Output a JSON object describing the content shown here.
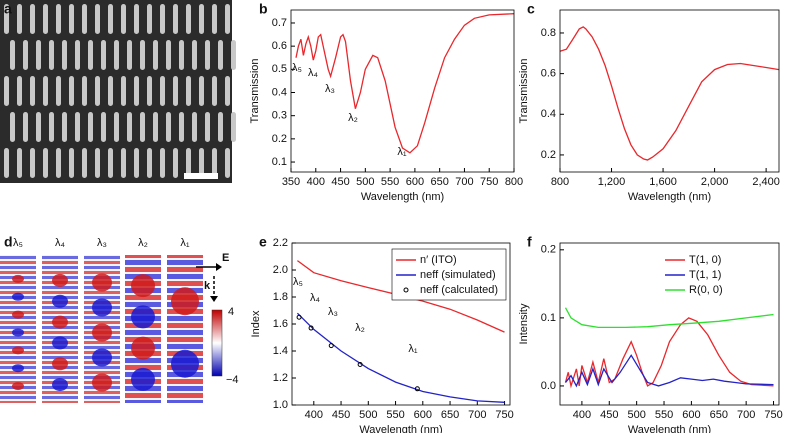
{
  "panel_labels": [
    "a",
    "b",
    "c",
    "d",
    "e",
    "f"
  ],
  "field_map": {
    "labels": [
      "λ₅",
      "λ₄",
      "λ₃",
      "λ₂",
      "λ₁"
    ],
    "colorbar_ticks": [
      "4",
      "−4"
    ],
    "field_label": "E",
    "wavevector_label": "k"
  },
  "chart_data": [
    {
      "type": "line",
      "xlabel": "Wavelength (nm)",
      "ylabel": "Transmission",
      "xlim": [
        350,
        800
      ],
      "ylim": [
        0.057,
        0.756
      ],
      "xticks": [
        350,
        400,
        450,
        500,
        550,
        600,
        650,
        700,
        750,
        800
      ],
      "yticks": [
        0.1,
        0.2,
        0.3,
        0.4,
        0.5,
        0.6,
        0.7
      ],
      "annotations": [
        "λ₅",
        "λ₄",
        "λ₃",
        "λ₂",
        "λ₁"
      ],
      "series": [
        {
          "color": "#e8282c",
          "x": [
            360,
            365,
            370,
            375,
            380,
            385,
            390,
            395,
            400,
            405,
            410,
            415,
            425,
            430,
            440,
            450,
            455,
            460,
            470,
            480,
            490,
            500,
            515,
            525,
            540,
            560,
            575,
            590,
            605,
            620,
            640,
            660,
            680,
            700,
            720,
            750,
            800
          ],
          "values": [
            0.55,
            0.6,
            0.63,
            0.56,
            0.61,
            0.64,
            0.6,
            0.54,
            0.58,
            0.64,
            0.65,
            0.6,
            0.5,
            0.47,
            0.55,
            0.64,
            0.65,
            0.62,
            0.45,
            0.33,
            0.4,
            0.5,
            0.56,
            0.55,
            0.45,
            0.25,
            0.16,
            0.14,
            0.17,
            0.27,
            0.42,
            0.55,
            0.63,
            0.69,
            0.72,
            0.735,
            0.74
          ]
        }
      ]
    },
    {
      "type": "line",
      "xlabel": "Wavelength (nm)",
      "ylabel": "Transmission",
      "xlim": [
        800,
        2500
      ],
      "ylim": [
        0.116,
        0.913
      ],
      "xticks": [
        800,
        {
          "value": 1200,
          "label": "1,200"
        },
        {
          "value": 1600,
          "label": "1,600"
        },
        {
          "value": 2000,
          "label": "2,000"
        },
        {
          "value": 2400,
          "label": "2,400"
        }
      ],
      "yticks": [
        0.2,
        0.4,
        0.6,
        0.8
      ],
      "series": [
        {
          "color": "#e8282c",
          "x": [
            800,
            850,
            900,
            950,
            980,
            1000,
            1050,
            1100,
            1150,
            1200,
            1250,
            1300,
            1350,
            1400,
            1450,
            1480,
            1520,
            1600,
            1700,
            1800,
            1900,
            2000,
            2100,
            2200,
            2300,
            2400,
            2500
          ],
          "values": [
            0.71,
            0.72,
            0.77,
            0.82,
            0.83,
            0.82,
            0.78,
            0.72,
            0.64,
            0.54,
            0.43,
            0.33,
            0.25,
            0.2,
            0.18,
            0.175,
            0.19,
            0.23,
            0.32,
            0.44,
            0.56,
            0.62,
            0.645,
            0.65,
            0.64,
            0.63,
            0.62
          ]
        }
      ]
    },
    {
      "type": "line",
      "xlabel": "Wavelength (nm)",
      "ylabel": "Index",
      "xlim": [
        360,
        760
      ],
      "ylim": [
        1,
        2.2
      ],
      "xticks": [
        400,
        450,
        500,
        550,
        600,
        650,
        700,
        750
      ],
      "yticks": [
        {
          "value": 1,
          "label": "1.0"
        },
        1.2,
        1.4,
        1.6,
        1.8,
        {
          "value": 2,
          "label": "2.0"
        },
        2.2
      ],
      "annotations": [
        "λ₅",
        "λ₄",
        "λ₃",
        "λ₂",
        "λ₁"
      ],
      "legend": "upper right",
      "legend_frame": true,
      "series": [
        {
          "name": "n′ (ITO)",
          "color": "#e8282c",
          "x": [
            370,
            400,
            450,
            500,
            550,
            600,
            650,
            700,
            750
          ],
          "values": [
            2.07,
            1.98,
            1.92,
            1.87,
            1.82,
            1.77,
            1.71,
            1.63,
            1.54
          ]
        },
        {
          "name": "neff (simulated)",
          "color": "#2323c8",
          "x": [
            370,
            400,
            450,
            500,
            550,
            600,
            650,
            700,
            750
          ],
          "values": [
            1.68,
            1.56,
            1.4,
            1.27,
            1.17,
            1.1,
            1.06,
            1.03,
            1.02
          ]
        },
        {
          "name": "neff (calculated)",
          "type": "scatter",
          "color": "#000000",
          "x": [
            373,
            395,
            432,
            485,
            590
          ],
          "values": [
            1.65,
            1.57,
            1.44,
            1.3,
            1.12
          ]
        }
      ]
    },
    {
      "type": "line",
      "xlabel": "Wavelength (nm)",
      "ylabel": "Intensity",
      "xlim": [
        360,
        760
      ],
      "ylim": [
        -0.028,
        0.21
      ],
      "xticks": [
        400,
        450,
        500,
        550,
        600,
        650,
        700,
        750
      ],
      "yticks": [
        {
          "value": 0,
          "label": "0.0"
        },
        0.1,
        0.2
      ],
      "legend": "upper right",
      "legend_frame": false,
      "series": [
        {
          "name": "T(1, 0)",
          "color": "#e8282c",
          "x": [
            370,
            375,
            380,
            390,
            395,
            400,
            410,
            420,
            430,
            440,
            450,
            460,
            475,
            490,
            500,
            510,
            520,
            530,
            545,
            560,
            580,
            595,
            610,
            630,
            650,
            670,
            690,
            710,
            750
          ],
          "values": [
            0.005,
            0.02,
            0,
            0.025,
            0,
            0.03,
            0.005,
            0.035,
            0.005,
            0.04,
            0.005,
            0.01,
            0.04,
            0.065,
            0.045,
            0.02,
            0,
            0.005,
            0.03,
            0.065,
            0.09,
            0.1,
            0.095,
            0.075,
            0.045,
            0.02,
            0.007,
            0.002,
            0
          ]
        },
        {
          "name": "T(1, 1)",
          "color": "#2323c8",
          "x": [
            370,
            380,
            390,
            400,
            410,
            420,
            430,
            440,
            455,
            470,
            490,
            505,
            520,
            540,
            560,
            580,
            600,
            620,
            640,
            660,
            680,
            700,
            750
          ],
          "values": [
            0.005,
            0.015,
            0,
            0.02,
            0.002,
            0.025,
            0.002,
            0.025,
            0.005,
            0.02,
            0.045,
            0.025,
            0.005,
            0,
            0.005,
            0.012,
            0.01,
            0.008,
            0.01,
            0.007,
            0.005,
            0.003,
            0.002
          ]
        },
        {
          "name": "R(0, 0)",
          "color": "#2ee02e",
          "x": [
            370,
            380,
            400,
            430,
            480,
            520,
            560,
            600,
            650,
            700,
            750
          ],
          "values": [
            0.115,
            0.1,
            0.09,
            0.086,
            0.086,
            0.087,
            0.09,
            0.092,
            0.095,
            0.1,
            0.105
          ]
        }
      ]
    }
  ]
}
